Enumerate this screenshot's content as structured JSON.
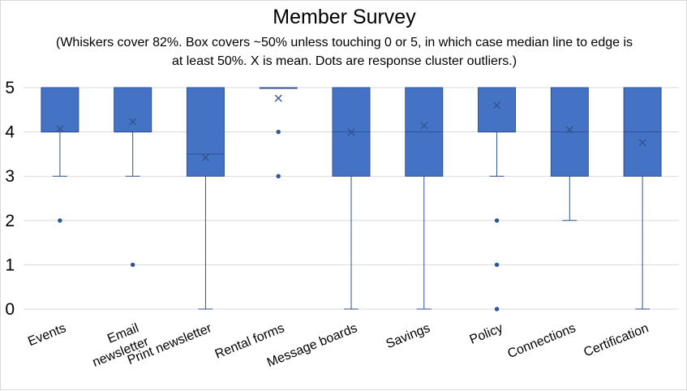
{
  "chart_data": {
    "type": "box",
    "title": "Member Survey",
    "subtitle_lines": [
      "(Whiskers cover 82%. Box covers ~50% unless touching 0 or 5, in which case median line to edge is",
      "at least 50%. X is mean. Dots are response cluster outliers.)"
    ],
    "ylim": [
      0,
      5
    ],
    "yticks": [
      "0",
      "1",
      "2",
      "3",
      "4",
      "5"
    ],
    "categories": [
      {
        "label": [
          "Events"
        ],
        "whisker_low": 3,
        "q1": 4,
        "median": 4,
        "q3": 5,
        "whisker_high": 5,
        "mean": 4.07,
        "outliers": [
          2
        ]
      },
      {
        "label": [
          "Email",
          "newsletter"
        ],
        "whisker_low": 3,
        "q1": 4,
        "median": 4,
        "q3": 5,
        "whisker_high": 5,
        "mean": 4.23,
        "outliers": [
          1
        ]
      },
      {
        "label": [
          "Print newsletter"
        ],
        "whisker_low": 0,
        "q1": 3,
        "median": 3.5,
        "q3": 5,
        "whisker_high": 5,
        "mean": 3.42,
        "outliers": []
      },
      {
        "label": [
          "Rental forms"
        ],
        "whisker_low": 5,
        "q1": 5,
        "median": 5,
        "q3": 5,
        "whisker_high": 5,
        "mean": 4.76,
        "outliers": [
          4,
          3
        ]
      },
      {
        "label": [
          "Message boards"
        ],
        "whisker_low": 0,
        "q1": 3,
        "median": 4,
        "q3": 5,
        "whisker_high": 5,
        "mean": 3.99,
        "outliers": []
      },
      {
        "label": [
          "Savings"
        ],
        "whisker_low": 0,
        "q1": 3,
        "median": 4,
        "q3": 5,
        "whisker_high": 5,
        "mean": 4.14,
        "outliers": []
      },
      {
        "label": [
          "Policy"
        ],
        "whisker_low": 3,
        "q1": 4,
        "median": 4,
        "q3": 5,
        "whisker_high": 5,
        "mean": 4.6,
        "outliers": [
          2,
          1,
          0
        ]
      },
      {
        "label": [
          "Connections"
        ],
        "whisker_low": 2,
        "q1": 3,
        "median": 4,
        "q3": 5,
        "whisker_high": 5,
        "mean": 4.05,
        "outliers": []
      },
      {
        "label": [
          "Certification"
        ],
        "whisker_low": 0,
        "q1": 3,
        "median": 4,
        "q3": 5,
        "whisker_high": 5,
        "mean": 3.76,
        "outliers": []
      }
    ],
    "colors": {
      "box_fill": "#4472c4",
      "box_edge": "#2f528f",
      "whisker": "#2f528f",
      "median": "#2f528f",
      "mean_marker": "#2f528f",
      "outlier": "#2f5597",
      "grid": "#d9d9d9"
    },
    "grid": true,
    "legend": "none"
  }
}
